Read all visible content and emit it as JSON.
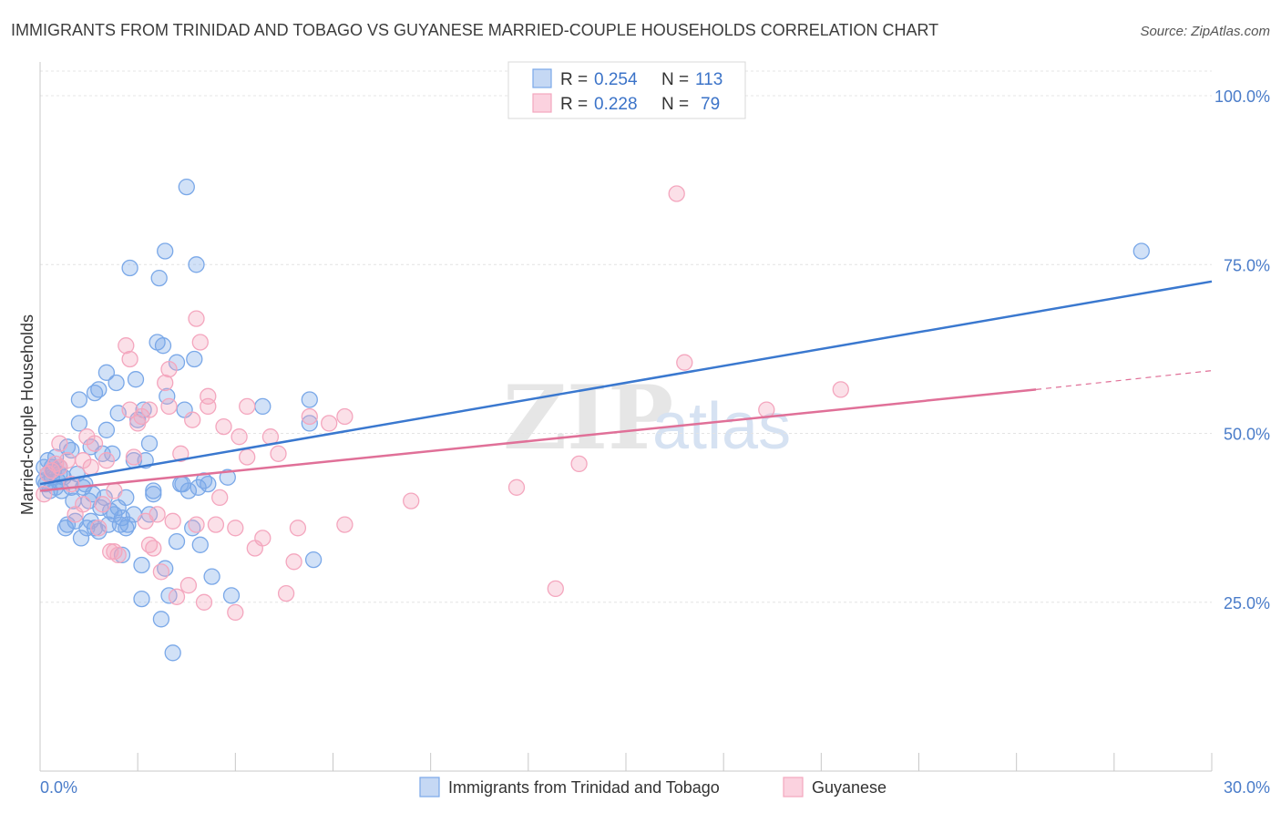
{
  "chart_data": {
    "type": "scatter",
    "title": "IMMIGRANTS FROM TRINIDAD AND TOBAGO VS GUYANESE MARRIED-COUPLE HOUSEHOLDS CORRELATION CHART",
    "source": "Source: ZipAtlas.com",
    "xlabel": "",
    "ylabel": "Married-couple Households",
    "xlim": [
      0,
      30
    ],
    "ylim": [
      0,
      105
    ],
    "x_tick_labels": [
      "0.0%",
      "30.0%"
    ],
    "y_ticks": [
      25,
      50,
      75,
      100
    ],
    "y_tick_labels": [
      "25.0%",
      "50.0%",
      "75.0%",
      "100.0%"
    ],
    "watermark": {
      "zip": "ZIP",
      "atlas": "atlas"
    },
    "legend": {
      "r_label": "R =",
      "n_label": "N =",
      "entries": [
        {
          "r": "0.254",
          "n": "113"
        },
        {
          "r": "0.228",
          "n": "79"
        }
      ]
    },
    "series": [
      {
        "name": "Immigrants from Trinidad and Tobago",
        "color": "#7aa8e8",
        "line_color": "#3a78cf",
        "trend": {
          "x0": 0,
          "y0": 42.5,
          "x1": 30,
          "y1": 72.5
        },
        "points": [
          [
            0.1,
            43
          ],
          [
            0.1,
            45
          ],
          [
            0.15,
            42.5
          ],
          [
            0.2,
            44
          ],
          [
            0.2,
            46
          ],
          [
            0.25,
            41.5
          ],
          [
            0.3,
            43.5
          ],
          [
            0.3,
            45
          ],
          [
            0.35,
            44.5
          ],
          [
            0.4,
            42
          ],
          [
            0.4,
            46.5
          ],
          [
            0.45,
            43
          ],
          [
            0.5,
            44
          ],
          [
            0.5,
            45
          ],
          [
            0.55,
            41.5
          ],
          [
            0.6,
            43.5
          ],
          [
            0.65,
            36
          ],
          [
            0.7,
            36.5
          ],
          [
            0.7,
            48
          ],
          [
            0.8,
            42
          ],
          [
            0.8,
            47.5
          ],
          [
            0.85,
            40
          ],
          [
            0.9,
            37
          ],
          [
            0.95,
            44
          ],
          [
            1.0,
            51.5
          ],
          [
            1.0,
            55
          ],
          [
            1.05,
            34.5
          ],
          [
            1.1,
            42
          ],
          [
            1.15,
            42.5
          ],
          [
            1.2,
            36
          ],
          [
            1.25,
            40
          ],
          [
            1.3,
            37
          ],
          [
            1.3,
            48
          ],
          [
            1.35,
            41
          ],
          [
            1.4,
            36
          ],
          [
            1.4,
            56
          ],
          [
            1.5,
            56.5
          ],
          [
            1.5,
            35.5
          ],
          [
            1.55,
            39
          ],
          [
            1.6,
            47
          ],
          [
            1.65,
            40.5
          ],
          [
            1.7,
            59
          ],
          [
            1.7,
            50.5
          ],
          [
            1.75,
            36.5
          ],
          [
            1.8,
            38.5
          ],
          [
            1.85,
            47
          ],
          [
            1.9,
            38
          ],
          [
            1.95,
            57.5
          ],
          [
            2.0,
            53
          ],
          [
            2.0,
            39
          ],
          [
            2.05,
            36.5
          ],
          [
            2.1,
            37.5
          ],
          [
            2.1,
            32
          ],
          [
            2.2,
            36
          ],
          [
            2.2,
            40.5
          ],
          [
            2.25,
            36.5
          ],
          [
            2.3,
            74.5
          ],
          [
            2.4,
            46
          ],
          [
            2.4,
            38
          ],
          [
            2.45,
            58
          ],
          [
            2.5,
            52
          ],
          [
            2.6,
            25.5
          ],
          [
            2.6,
            30.5
          ],
          [
            2.65,
            53.5
          ],
          [
            2.7,
            46
          ],
          [
            2.8,
            48.5
          ],
          [
            2.8,
            38
          ],
          [
            2.9,
            41.5
          ],
          [
            2.9,
            41
          ],
          [
            3.0,
            63.5
          ],
          [
            3.05,
            73
          ],
          [
            3.1,
            22.5
          ],
          [
            3.15,
            63
          ],
          [
            3.2,
            77
          ],
          [
            3.2,
            30
          ],
          [
            3.25,
            55.5
          ],
          [
            3.3,
            26
          ],
          [
            3.4,
            17.5
          ],
          [
            3.5,
            60.5
          ],
          [
            3.5,
            34
          ],
          [
            3.6,
            42.5
          ],
          [
            3.65,
            42.5
          ],
          [
            3.7,
            53.5
          ],
          [
            3.75,
            86.5
          ],
          [
            3.8,
            41.5
          ],
          [
            3.9,
            36
          ],
          [
            3.95,
            61
          ],
          [
            4.0,
            75
          ],
          [
            4.05,
            42
          ],
          [
            4.1,
            33.5
          ],
          [
            4.2,
            43
          ],
          [
            4.3,
            42.5
          ],
          [
            4.4,
            28.8
          ],
          [
            4.8,
            43.5
          ],
          [
            4.9,
            26
          ],
          [
            5.7,
            54
          ],
          [
            6.9,
            51.5
          ],
          [
            6.9,
            55
          ],
          [
            7.0,
            31.3
          ],
          [
            28.2,
            77
          ]
        ]
      },
      {
        "name": "Guyanese",
        "color": "#f4a6be",
        "line_color": "#e07098",
        "trend": {
          "x0": 0,
          "y0": 41.5,
          "x1": 25.5,
          "y1": 56.5
        },
        "trend_dashed": {
          "x0": 25.5,
          "y0": 56.5,
          "x1": 30,
          "y1": 59.3
        },
        "points": [
          [
            0.1,
            41
          ],
          [
            0.2,
            44
          ],
          [
            0.3,
            44.5
          ],
          [
            0.4,
            45.5
          ],
          [
            0.5,
            45
          ],
          [
            0.5,
            48.5
          ],
          [
            0.7,
            46
          ],
          [
            0.8,
            42.5
          ],
          [
            0.9,
            38
          ],
          [
            1.1,
            39.5
          ],
          [
            1.1,
            46
          ],
          [
            1.2,
            49.5
          ],
          [
            1.3,
            45
          ],
          [
            1.4,
            48.5
          ],
          [
            1.5,
            36
          ],
          [
            1.6,
            39.5
          ],
          [
            1.7,
            46
          ],
          [
            1.8,
            32.5
          ],
          [
            1.9,
            41.5
          ],
          [
            1.9,
            32.5
          ],
          [
            2.0,
            32
          ],
          [
            2.2,
            63
          ],
          [
            2.3,
            53.5
          ],
          [
            2.3,
            61
          ],
          [
            2.4,
            46.5
          ],
          [
            2.5,
            51.5
          ],
          [
            2.6,
            52.5
          ],
          [
            2.7,
            37
          ],
          [
            2.8,
            33.5
          ],
          [
            2.8,
            53.5
          ],
          [
            2.9,
            33
          ],
          [
            3.0,
            38
          ],
          [
            3.1,
            29.5
          ],
          [
            3.2,
            57.5
          ],
          [
            3.3,
            59.5
          ],
          [
            3.3,
            54
          ],
          [
            3.4,
            37
          ],
          [
            3.5,
            25.8
          ],
          [
            3.6,
            47
          ],
          [
            3.8,
            27.5
          ],
          [
            3.9,
            52
          ],
          [
            4.0,
            67
          ],
          [
            4.0,
            36.5
          ],
          [
            4.1,
            63.5
          ],
          [
            4.2,
            25
          ],
          [
            4.3,
            55.5
          ],
          [
            4.3,
            54
          ],
          [
            4.5,
            36.5
          ],
          [
            4.6,
            40.5
          ],
          [
            4.7,
            51
          ],
          [
            5.0,
            36
          ],
          [
            5.0,
            23.5
          ],
          [
            5.1,
            49.5
          ],
          [
            5.3,
            46.5
          ],
          [
            5.3,
            54
          ],
          [
            5.5,
            33
          ],
          [
            5.7,
            34.5
          ],
          [
            5.9,
            49.5
          ],
          [
            6.1,
            47
          ],
          [
            6.3,
            26.3
          ],
          [
            6.5,
            31
          ],
          [
            6.6,
            36
          ],
          [
            6.9,
            52.5
          ],
          [
            7.4,
            51.5
          ],
          [
            7.8,
            52.5
          ],
          [
            7.8,
            36.5
          ],
          [
            9.5,
            40
          ],
          [
            12.2,
            42
          ],
          [
            13.2,
            27
          ],
          [
            13.8,
            45.5
          ],
          [
            16.3,
            85.5
          ],
          [
            16.5,
            60.5
          ],
          [
            18.6,
            53.5
          ],
          [
            20.5,
            56.5
          ]
        ]
      }
    ]
  },
  "bottom_legend": [
    "Immigrants from Trinidad and Tobago",
    "Guyanese"
  ]
}
